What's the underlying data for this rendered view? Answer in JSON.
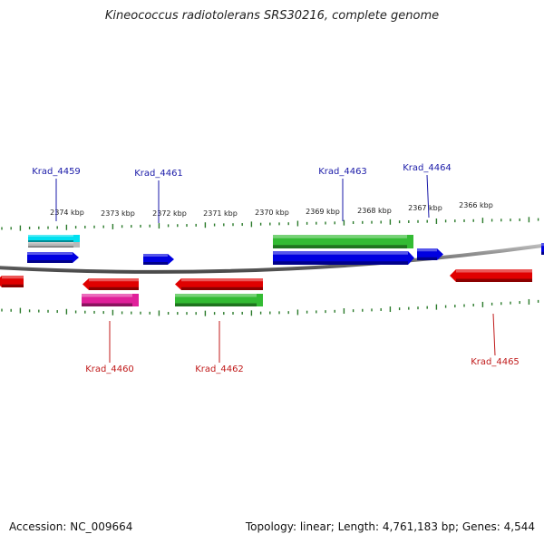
{
  "title": "Kineococcus radiotolerans SRS30216, complete genome",
  "footer": {
    "accession": "Accession: NC_009664",
    "stats": "Topology: linear; Length: 4,761,183 bp; Genes: 4,544"
  },
  "colors": {
    "backbone": "#808080",
    "tick": "#2a7a2a",
    "top_label": "#1a1aa8",
    "bottom_label": "#c01a1a",
    "blue": "#0000e0",
    "red": "#e00000",
    "green": "#33bb33",
    "cyan": "#00e0f0",
    "gray": "#b8b8b8",
    "magenta": "#e0209a"
  },
  "kbp_labels": [
    "2374 kbp",
    "2373 kbp",
    "2372 kbp",
    "2371 kbp",
    "2370 kbp",
    "2369 kbp",
    "2368 kbp",
    "2367 kbp",
    "2366 kbp"
  ],
  "gene_labels_top": [
    "Krad_4459",
    "Krad_4461",
    "Krad_4463",
    "Krad_4464"
  ],
  "gene_labels_bottom": [
    "Krad_4460",
    "Krad_4462",
    "Krad_4465"
  ]
}
